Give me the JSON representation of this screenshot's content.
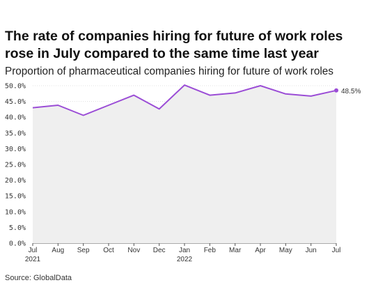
{
  "chart_data": {
    "type": "line",
    "title": "The rate of companies hiring for future of work roles rose in July compared to the same time last year",
    "subtitle": "Proportion of pharmaceutical companies hiring for future of work roles",
    "source": "Source: GlobalData",
    "x": [
      "Jul",
      "Aug",
      "Sep",
      "Oct",
      "Nov",
      "Dec",
      "Jan",
      "Feb",
      "Mar",
      "Apr",
      "May",
      "Jun",
      "Jul"
    ],
    "x_year_labels": [
      {
        "index": 0,
        "label": "2021"
      },
      {
        "index": 6,
        "label": "2022"
      }
    ],
    "values": [
      43.0,
      43.8,
      40.6,
      43.8,
      47.0,
      42.6,
      50.2,
      47.0,
      47.7,
      50.0,
      47.4,
      46.7,
      48.5
    ],
    "end_label": "48.5%",
    "ylim": [
      0,
      50
    ],
    "yticks": [
      "0.0%",
      "5.0%",
      "10.0%",
      "15.0%",
      "20.0%",
      "25.0%",
      "30.0%",
      "35.0%",
      "40.0%",
      "45.0%",
      "50.0%"
    ],
    "ytick_values": [
      0,
      5,
      10,
      15,
      20,
      25,
      30,
      35,
      40,
      45,
      50
    ],
    "grid": true,
    "colors": {
      "line": "#9b4dd6",
      "area": "#efefef",
      "grid": "#d6d6d6"
    }
  }
}
